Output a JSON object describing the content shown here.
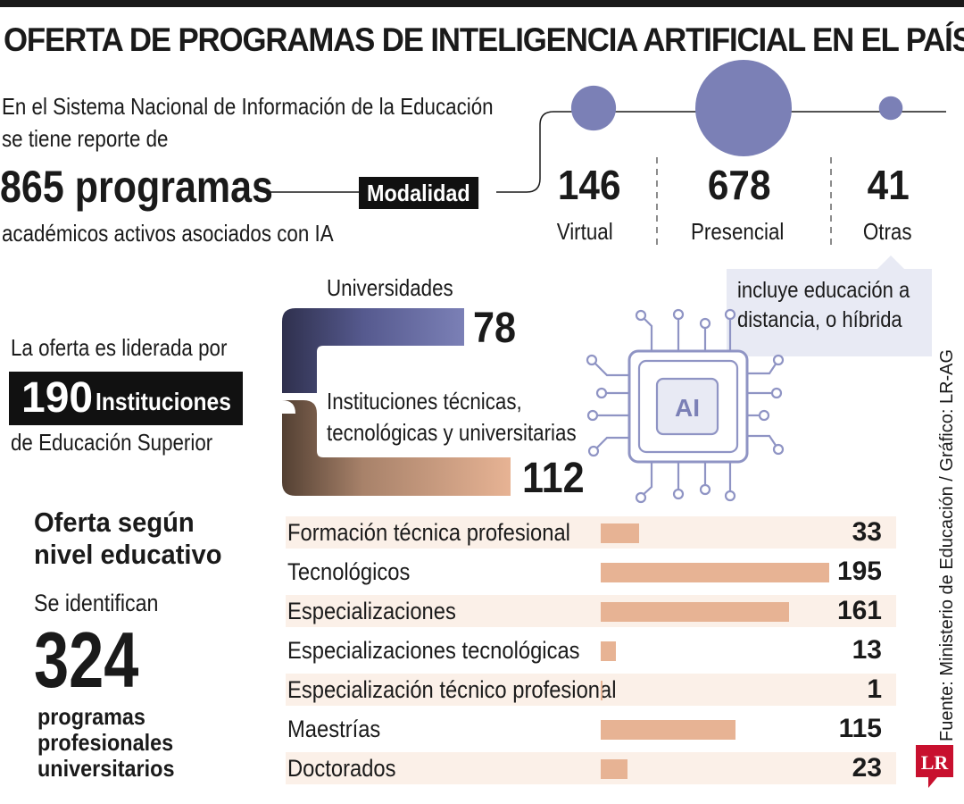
{
  "title": "OFERTA DE PROGRAMAS DE INTELIGENCIA ARTIFICIAL EN EL PAÍS",
  "intro": {
    "line1": "En el Sistema Nacional de Información de la Educación",
    "line2": "se tiene reporte de",
    "big": "865 programas",
    "line3": "académicos activos asociados con IA"
  },
  "modality": {
    "label": "Modalidad",
    "items": [
      {
        "value": "146",
        "label": "Virtual",
        "count": 146
      },
      {
        "value": "678",
        "label": "Presencial",
        "count": 678
      },
      {
        "value": "41",
        "label": "Otras",
        "count": 41
      }
    ],
    "note": "incluye educación a distancia, o híbrida",
    "note_line1": "incluye educación a",
    "note_line2": "distancia, o híbrida",
    "circle_color": "#7b80b6"
  },
  "institutions": {
    "lead": "La oferta es liderada por",
    "count": "190",
    "count_label": "Instituciones",
    "tail": "de Educación Superior",
    "universities_label": "Universidades",
    "universities_value": "78",
    "technical_label_line1": "Instituciones técnicas,",
    "technical_label_line2": "tecnológicas y universitarias",
    "technical_value": "112",
    "university_color": "#7b80b6",
    "technical_color": "#e7b394"
  },
  "ai_icon": {
    "label": "AI",
    "icon": "ai-chip-icon",
    "color": "#7b80b6"
  },
  "levels": {
    "heading_line1": "Oferta según",
    "heading_line2": "nivel educativo",
    "identify": "Se identifican",
    "count": "324",
    "count_line1": "programas",
    "count_line2": "profesionales",
    "count_line3": "universitarios"
  },
  "chart_data": {
    "type": "bar",
    "orientation": "horizontal",
    "categories": [
      "Formación técnica profesional",
      "Tecnológicos",
      "Especializaciones",
      "Especializaciones tecnológicas",
      "Especialización técnico profesional",
      "Maestrías",
      "Doctorados"
    ],
    "values": [
      33,
      195,
      161,
      13,
      1,
      115,
      23
    ],
    "value_labels": [
      "33",
      "195",
      "161",
      "13",
      "1",
      "115",
      "23"
    ],
    "bar_color": "#e7b394",
    "row_shade_color": "#fbf0e8",
    "xlim": [
      0,
      195
    ]
  },
  "credits": "Fuente: Ministerio de Educación / Gráfico: LR-AG",
  "logo_text": "LR",
  "logo_color": "#c8102e"
}
